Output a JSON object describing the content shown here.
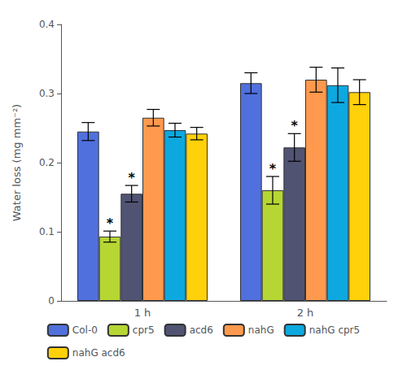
{
  "chart_data": {
    "type": "bar",
    "categories": [
      "1 h",
      "2 h"
    ],
    "series": [
      {
        "name": "Col-0",
        "values": [
          0.245,
          0.315
        ],
        "errors": [
          0.013,
          0.015
        ]
      },
      {
        "name": "cpr5",
        "values": [
          0.093,
          0.16
        ],
        "errors": [
          0.008,
          0.02
        ]
      },
      {
        "name": "acd6",
        "values": [
          0.155,
          0.222
        ],
        "errors": [
          0.012,
          0.02
        ]
      },
      {
        "name": "nahG",
        "values": [
          0.265,
          0.32
        ],
        "errors": [
          0.012,
          0.018
        ]
      },
      {
        "name": "nahG cpr5",
        "values": [
          0.247,
          0.312
        ],
        "errors": [
          0.01,
          0.025
        ]
      },
      {
        "name": "nahG acd6",
        "values": [
          0.242,
          0.302
        ],
        "errors": [
          0.009,
          0.018
        ]
      }
    ],
    "annotations": [
      {
        "category": "1 h",
        "series": "cpr5",
        "text": "*"
      },
      {
        "category": "1 h",
        "series": "acd6",
        "text": "*"
      },
      {
        "category": "2 h",
        "series": "cpr5",
        "text": "*"
      },
      {
        "category": "2 h",
        "series": "acd6",
        "text": "*"
      }
    ],
    "ylabel": "Water loss (mg mm⁻²)",
    "ylim": [
      0,
      0.4
    ],
    "yticks": [
      0,
      0.1,
      0.2,
      0.3,
      0.4
    ],
    "grid": false,
    "legend": "bottom"
  }
}
